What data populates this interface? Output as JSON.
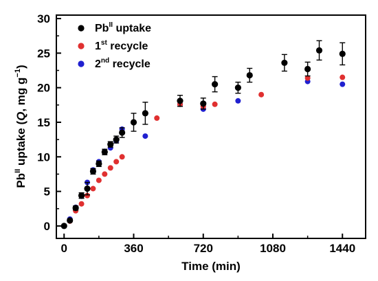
{
  "chart_data": {
    "type": "scatter",
    "xlabel": "Time (min)",
    "ylabel_parts": {
      "a": "Pb",
      "a_sup": "II",
      "b": " uptake (",
      "c_italic": "Q",
      "d": ", mg g",
      "d_sup": "−1",
      "e": ")"
    },
    "xlim": [
      -40,
      1560
    ],
    "ylim": [
      -1.8,
      30.5
    ],
    "xticks": [
      0,
      360,
      720,
      1080,
      1440
    ],
    "yticks": [
      0,
      5,
      10,
      15,
      20,
      25,
      30
    ],
    "xtick_labels": [
      "0",
      "360",
      "720",
      "1080",
      "1440"
    ],
    "ytick_labels": [
      "0",
      "5",
      "10",
      "15",
      "20",
      "25",
      "30"
    ],
    "grid": false,
    "legend_position": "top-left",
    "legend": [
      {
        "base": "Pb",
        "sup": "II",
        "rest": " uptake"
      },
      {
        "base": "1",
        "sup": "st",
        "rest": " recycle"
      },
      {
        "base": "2",
        "sup": "nd",
        "rest": " recycle"
      }
    ],
    "series": [
      {
        "color": "#000000",
        "error_bars": true,
        "x": [
          0,
          30,
          60,
          90,
          120,
          150,
          180,
          210,
          240,
          270,
          300,
          360,
          420,
          600,
          720,
          780,
          900,
          960,
          1140,
          1260,
          1320,
          1440
        ],
        "y": [
          0,
          0.8,
          2.6,
          4.4,
          5.4,
          7.9,
          9.0,
          10.7,
          11.8,
          12.5,
          13.5,
          15.0,
          16.3,
          18.1,
          17.7,
          20.5,
          20.0,
          21.8,
          23.6,
          22.7,
          25.4,
          24.9
        ],
        "err": [
          0,
          0.2,
          0.3,
          0.4,
          0.9,
          0.4,
          0.4,
          0.4,
          0.4,
          0.5,
          0.7,
          1.3,
          1.6,
          0.8,
          0.8,
          1.1,
          0.8,
          1.0,
          1.2,
          1.0,
          1.4,
          1.6
        ]
      },
      {
        "color": "#e03030",
        "error_bars": false,
        "x": [
          0,
          30,
          60,
          90,
          120,
          150,
          180,
          210,
          240,
          270,
          300,
          480,
          600,
          720,
          780,
          1020,
          1260,
          1440
        ],
        "y": [
          0,
          0.7,
          2.2,
          3.2,
          4.4,
          5.4,
          6.6,
          7.5,
          8.4,
          9.3,
          10.0,
          15.6,
          17.6,
          17.3,
          17.6,
          19.0,
          21.4,
          21.5
        ]
      },
      {
        "color": "#2020d0",
        "error_bars": false,
        "x": [
          0,
          30,
          60,
          90,
          120,
          150,
          180,
          210,
          240,
          270,
          300,
          420,
          600,
          720,
          900,
          1260,
          1440
        ],
        "y": [
          0,
          1.0,
          2.7,
          4.3,
          6.3,
          8.1,
          9.3,
          10.8,
          11.3,
          12.3,
          14.0,
          13.0,
          17.6,
          16.9,
          18.1,
          20.9,
          20.5
        ]
      }
    ]
  }
}
